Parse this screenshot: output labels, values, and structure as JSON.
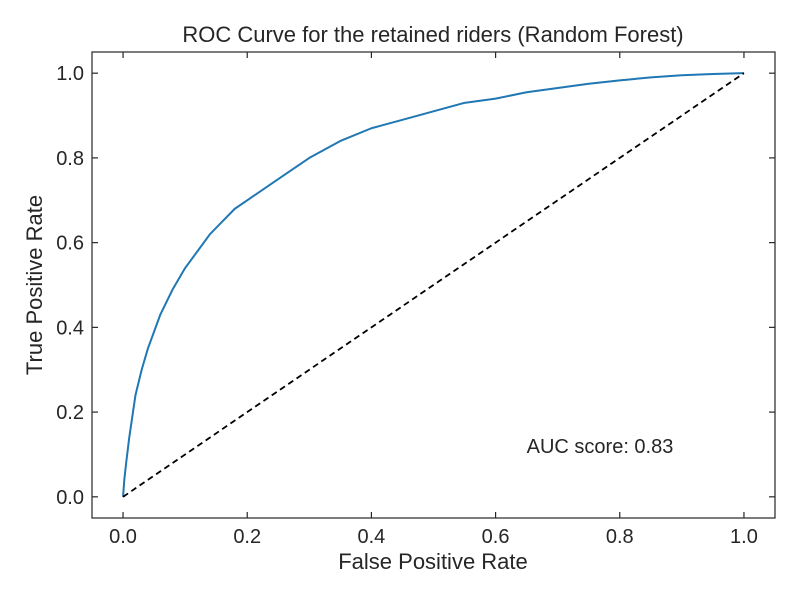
{
  "chart_data": {
    "type": "line",
    "title": "ROC Curve for the retained riders (Random Forest)",
    "xlabel": "False Positive Rate",
    "ylabel": "True Positive Rate",
    "xlim": [
      -0.05,
      1.05
    ],
    "ylim": [
      -0.05,
      1.05
    ],
    "xticks": [
      0.0,
      0.2,
      0.4,
      0.6,
      0.8,
      1.0
    ],
    "yticks": [
      0.0,
      0.2,
      0.4,
      0.6,
      0.8,
      1.0
    ],
    "xtick_labels": [
      "0.0",
      "0.2",
      "0.4",
      "0.6",
      "0.8",
      "1.0"
    ],
    "ytick_labels": [
      "0.0",
      "0.2",
      "0.4",
      "0.6",
      "0.8",
      "1.0"
    ],
    "grid": false,
    "ticks_direction": "in",
    "annotation": {
      "text": "AUC score: 0.83",
      "x": 0.65,
      "y": 0.12
    },
    "series": [
      {
        "color": "#1f77b4",
        "style": "solid",
        "x": [
          0.0,
          0.002,
          0.005,
          0.01,
          0.015,
          0.02,
          0.03,
          0.04,
          0.05,
          0.06,
          0.08,
          0.1,
          0.12,
          0.14,
          0.16,
          0.18,
          0.2,
          0.25,
          0.3,
          0.35,
          0.4,
          0.45,
          0.5,
          0.55,
          0.6,
          0.65,
          0.7,
          0.75,
          0.8,
          0.85,
          0.9,
          0.95,
          1.0
        ],
        "y": [
          0.0,
          0.04,
          0.08,
          0.14,
          0.19,
          0.24,
          0.3,
          0.35,
          0.39,
          0.43,
          0.49,
          0.54,
          0.58,
          0.62,
          0.65,
          0.68,
          0.7,
          0.75,
          0.8,
          0.84,
          0.87,
          0.89,
          0.91,
          0.93,
          0.94,
          0.955,
          0.965,
          0.975,
          0.983,
          0.99,
          0.995,
          0.998,
          1.0
        ]
      },
      {
        "color": "#000000",
        "style": "dashed",
        "x": [
          0.0,
          1.0
        ],
        "y": [
          0.0,
          1.0
        ]
      }
    ]
  }
}
